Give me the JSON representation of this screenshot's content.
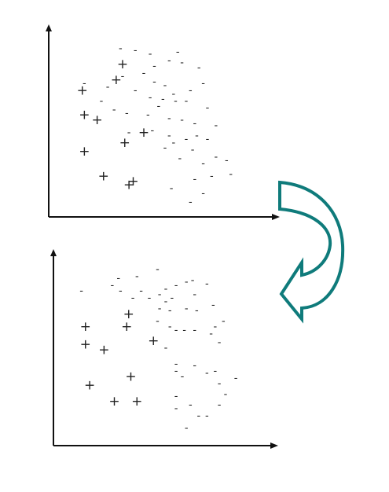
{
  "colors": {
    "background": "#ffffff",
    "points": "#222222",
    "axes": "#111111",
    "arrow": "#0f7b7b"
  },
  "symbols": {
    "positive": "+",
    "negative": "-"
  },
  "chart_data": [
    {
      "type": "scatter",
      "title": "",
      "xlabel": "",
      "ylabel": "",
      "grid": false,
      "series": [
        {
          "label": "+",
          "points": [
            [
              0.11,
              0.66
            ],
            [
              0.12,
              0.52
            ],
            [
              0.18,
              0.49
            ],
            [
              0.3,
              0.81
            ],
            [
              0.27,
              0.72
            ],
            [
              0.31,
              0.36
            ],
            [
              0.4,
              0.42
            ],
            [
              0.35,
              0.14
            ],
            [
              0.21,
              0.17
            ],
            [
              0.33,
              0.12
            ],
            [
              0.12,
              0.31
            ]
          ]
        },
        {
          "label": "-",
          "points": [
            [
              0.12,
              0.7
            ],
            [
              0.2,
              0.6
            ],
            [
              0.23,
              0.68
            ],
            [
              0.26,
              0.55
            ],
            [
              0.32,
              0.53
            ],
            [
              0.29,
              0.9
            ],
            [
              0.36,
              0.89
            ],
            [
              0.43,
              0.87
            ],
            [
              0.45,
              0.8
            ],
            [
              0.52,
              0.83
            ],
            [
              0.56,
              0.88
            ],
            [
              0.58,
              0.82
            ],
            [
              0.45,
              0.71
            ],
            [
              0.5,
              0.69
            ],
            [
              0.54,
              0.64
            ],
            [
              0.49,
              0.61
            ],
            [
              0.55,
              0.6
            ],
            [
              0.6,
              0.6
            ],
            [
              0.42,
              0.52
            ],
            [
              0.47,
              0.57
            ],
            [
              0.52,
              0.5
            ],
            [
              0.58,
              0.49
            ],
            [
              0.64,
              0.47
            ],
            [
              0.65,
              0.4
            ],
            [
              0.7,
              0.38
            ],
            [
              0.74,
              0.46
            ],
            [
              0.6,
              0.38
            ],
            [
              0.7,
              0.56
            ],
            [
              0.62,
              0.66
            ],
            [
              0.68,
              0.7
            ],
            [
              0.66,
              0.79
            ],
            [
              0.5,
              0.33
            ],
            [
              0.57,
              0.27
            ],
            [
              0.63,
              0.32
            ],
            [
              0.68,
              0.24
            ],
            [
              0.74,
              0.28
            ],
            [
              0.79,
              0.26
            ],
            [
              0.81,
              0.18
            ],
            [
              0.72,
              0.17
            ],
            [
              0.64,
              0.15
            ],
            [
              0.53,
              0.1
            ],
            [
              0.4,
              0.76
            ],
            [
              0.3,
              0.74
            ],
            [
              0.36,
              0.66
            ],
            [
              0.43,
              0.62
            ],
            [
              0.33,
              0.42
            ],
            [
              0.44,
              0.43
            ],
            [
              0.52,
              0.4
            ],
            [
              0.54,
              0.36
            ],
            [
              0.62,
              0.02
            ],
            [
              0.68,
              0.07
            ]
          ]
        }
      ]
    },
    {
      "type": "scatter",
      "title": "",
      "xlabel": "",
      "ylabel": "",
      "grid": false,
      "series": [
        {
          "label": "+",
          "points": [
            [
              0.11,
              0.6
            ],
            [
              0.11,
              0.5
            ],
            [
              0.2,
              0.47
            ],
            [
              0.31,
              0.6
            ],
            [
              0.32,
              0.67
            ],
            [
              0.44,
              0.52
            ],
            [
              0.33,
              0.32
            ],
            [
              0.13,
              0.27
            ],
            [
              0.25,
              0.18
            ],
            [
              0.36,
              0.18
            ]
          ]
        },
        {
          "label": "-",
          "points": [
            [
              0.09,
              0.8
            ],
            [
              0.24,
              0.83
            ],
            [
              0.28,
              0.8
            ],
            [
              0.38,
              0.8
            ],
            [
              0.42,
              0.76
            ],
            [
              0.47,
              0.78
            ],
            [
              0.5,
              0.81
            ],
            [
              0.46,
              0.92
            ],
            [
              0.55,
              0.83
            ],
            [
              0.6,
              0.85
            ],
            [
              0.63,
              0.86
            ],
            [
              0.64,
              0.78
            ],
            [
              0.7,
              0.84
            ],
            [
              0.47,
              0.7
            ],
            [
              0.5,
              0.74
            ],
            [
              0.53,
              0.76
            ],
            [
              0.6,
              0.7
            ],
            [
              0.65,
              0.69
            ],
            [
              0.73,
              0.72
            ],
            [
              0.78,
              0.63
            ],
            [
              0.74,
              0.6
            ],
            [
              0.72,
              0.56
            ],
            [
              0.76,
              0.51
            ],
            [
              0.64,
              0.58
            ],
            [
              0.59,
              0.58
            ],
            [
              0.55,
              0.58
            ],
            [
              0.52,
              0.6
            ],
            [
              0.46,
              0.63
            ],
            [
              0.5,
              0.48
            ],
            [
              0.55,
              0.39
            ],
            [
              0.58,
              0.32
            ],
            [
              0.64,
              0.38
            ],
            [
              0.7,
              0.34
            ],
            [
              0.74,
              0.35
            ],
            [
              0.76,
              0.28
            ],
            [
              0.84,
              0.31
            ],
            [
              0.55,
              0.21
            ],
            [
              0.62,
              0.16
            ],
            [
              0.7,
              0.1
            ],
            [
              0.55,
              0.14
            ],
            [
              0.76,
              0.16
            ],
            [
              0.79,
              0.22
            ],
            [
              0.6,
              0.03
            ],
            [
              0.66,
              0.1
            ],
            [
              0.27,
              0.87
            ],
            [
              0.36,
              0.88
            ],
            [
              0.34,
              0.76
            ],
            [
              0.55,
              0.35
            ],
            [
              0.52,
              0.69
            ]
          ]
        }
      ]
    }
  ]
}
